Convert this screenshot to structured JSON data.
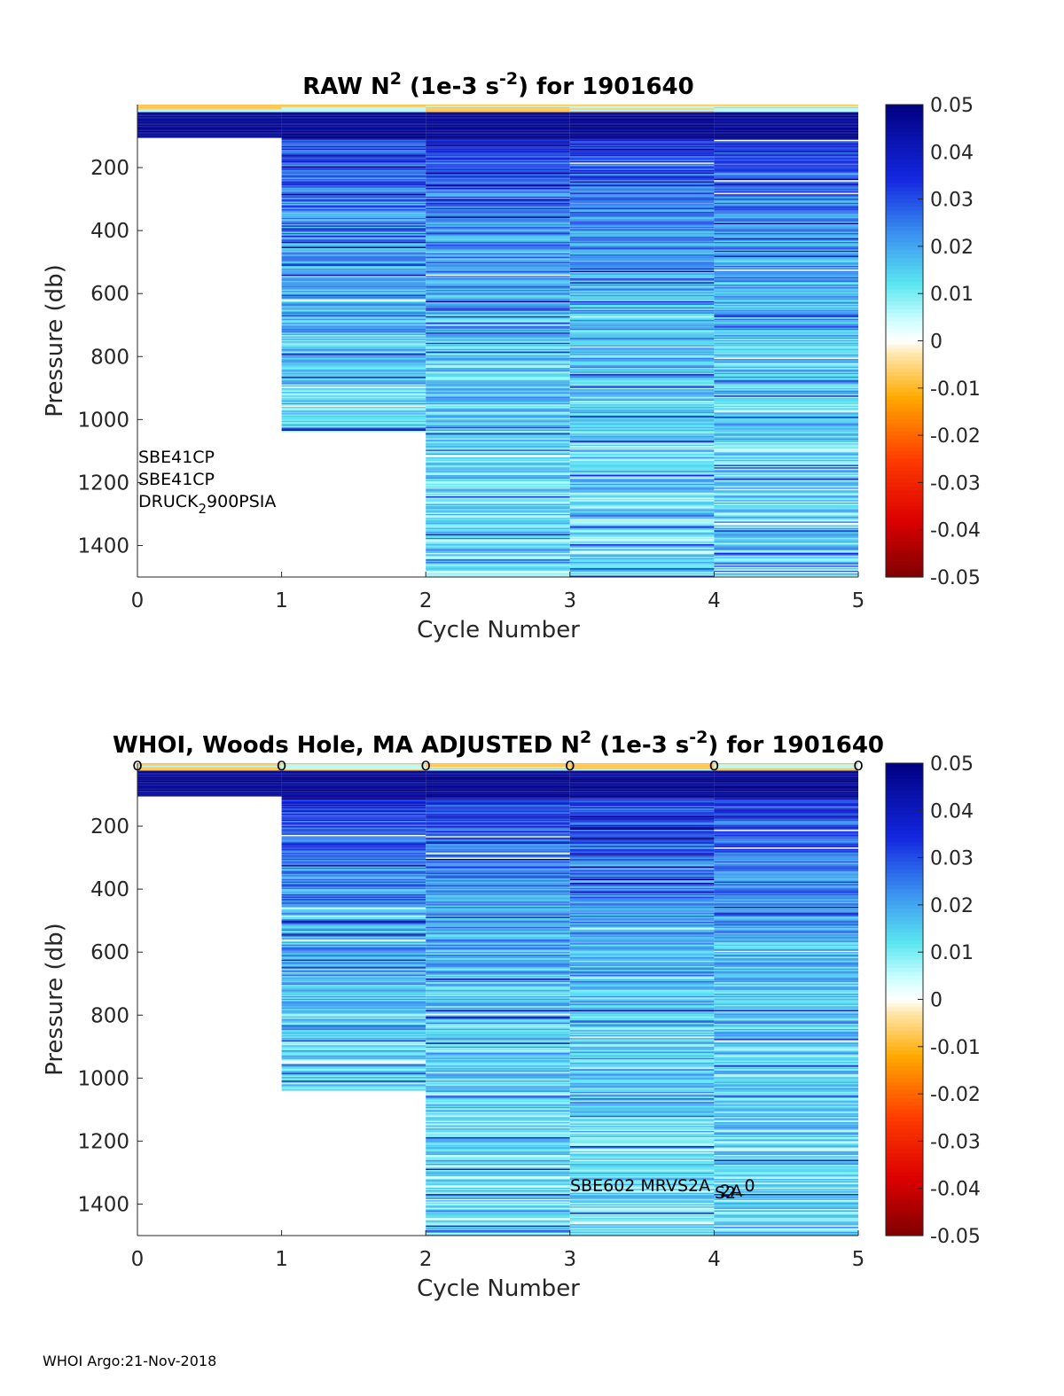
{
  "chart_data": [
    {
      "type": "heatmap",
      "title_parts": [
        "RAW N",
        "2",
        " (1e-3 s",
        "-2",
        ") for 1901640"
      ],
      "xlabel": "Cycle Number",
      "ylabel": "Pressure (db)",
      "xlim": [
        0,
        5
      ],
      "ylim": [
        1500,
        0
      ],
      "y_reversed": true,
      "x_ticks": [
        "0",
        "1",
        "2",
        "3",
        "4",
        "5"
      ],
      "y_ticks": [
        "200",
        "400",
        "600",
        "800",
        "1000",
        "1200",
        "1400"
      ],
      "colorbar": {
        "min": -0.05,
        "max": 0.05,
        "ticks": [
          "0.05",
          "0.04",
          "0.03",
          "0.02",
          "0.01",
          "0",
          "-0.01",
          "-0.02",
          "-0.03",
          "-0.04",
          "-0.05"
        ]
      },
      "cycles": [
        {
          "x_range": [
            0,
            1
          ],
          "max_pressure": 105,
          "seed": 11
        },
        {
          "x_range": [
            1,
            2
          ],
          "max_pressure": 1040,
          "seed": 23
        },
        {
          "x_range": [
            2,
            3
          ],
          "max_pressure": 1500,
          "seed": 37
        },
        {
          "x_range": [
            3,
            4
          ],
          "max_pressure": 1500,
          "seed": 41
        },
        {
          "x_range": [
            4,
            5
          ],
          "max_pressure": 1500,
          "seed": 59
        }
      ],
      "annotations": [
        {
          "text": "SBE41CP"
        },
        {
          "text": "SBE41CP"
        },
        {
          "parts": [
            "DRUCK",
            "2",
            "900PSIA"
          ]
        }
      ]
    },
    {
      "type": "heatmap",
      "title_parts": [
        "WHOI, Woods Hole, MA  ADJUSTED N",
        "2",
        " (1e-3 s",
        "-2",
        ") for 1901640"
      ],
      "xlabel": "Cycle Number",
      "ylabel": "Pressure (db)",
      "xlim": [
        0,
        5
      ],
      "ylim": [
        1500,
        0
      ],
      "y_reversed": true,
      "x_ticks": [
        "0",
        "1",
        "2",
        "3",
        "4",
        "5"
      ],
      "y_ticks": [
        "200",
        "400",
        "600",
        "800",
        "1000",
        "1200",
        "1400"
      ],
      "colorbar": {
        "min": -0.05,
        "max": 0.05,
        "ticks": [
          "0.05",
          "0.04",
          "0.03",
          "0.02",
          "0.01",
          "0",
          "-0.01",
          "-0.02",
          "-0.03",
          "-0.04",
          "-0.05"
        ]
      },
      "cycles": [
        {
          "x_range": [
            0,
            1
          ],
          "max_pressure": 105,
          "seed": 13
        },
        {
          "x_range": [
            1,
            2
          ],
          "max_pressure": 1040,
          "seed": 29
        },
        {
          "x_range": [
            2,
            3
          ],
          "max_pressure": 1500,
          "seed": 31
        },
        {
          "x_range": [
            3,
            4
          ],
          "max_pressure": 1500,
          "seed": 43
        },
        {
          "x_range": [
            4,
            5
          ],
          "max_pressure": 1500,
          "seed": 61
        }
      ],
      "markers": {
        "symbol": "o",
        "x": [
          0,
          1,
          2,
          3,
          4,
          5
        ]
      },
      "annotations": [
        {
          "parts": [
            "SBE602 MRVS2A",
            "S2",
            "2A",
            "_0"
          ]
        }
      ]
    }
  ],
  "footer": "WHOI Argo:21-Nov-2018"
}
